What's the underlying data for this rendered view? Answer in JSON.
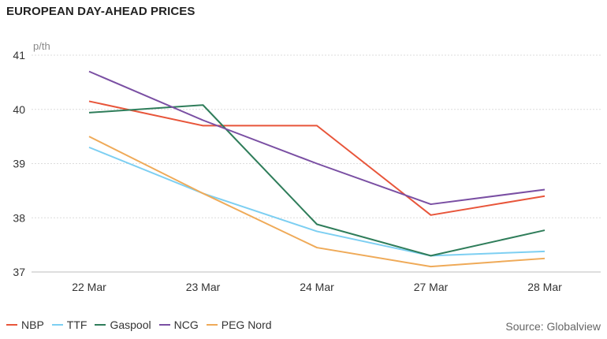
{
  "title": "EUROPEAN DAY-AHEAD PRICES",
  "source": "Source: Globalview",
  "chart_data": {
    "type": "line",
    "unit": "p/th",
    "categories": [
      "22 Mar",
      "23 Mar",
      "24 Mar",
      "27 Mar",
      "28 Mar"
    ],
    "yticks": [
      37,
      38,
      39,
      40,
      41
    ],
    "ylim": [
      37,
      41
    ],
    "grid": true,
    "legend_position": "bottom-left",
    "series": [
      {
        "name": "NBP",
        "color": "#e8553a",
        "values": [
          40.15,
          39.7,
          39.7,
          38.05,
          38.4
        ]
      },
      {
        "name": "TTF",
        "color": "#7dcff2",
        "values": [
          39.3,
          38.45,
          37.75,
          37.3,
          37.38
        ]
      },
      {
        "name": "Gaspool",
        "color": "#2f7d5a",
        "values": [
          39.94,
          40.08,
          37.88,
          37.3,
          37.77
        ]
      },
      {
        "name": "NCG",
        "color": "#7a4fa3",
        "values": [
          40.7,
          39.8,
          39.0,
          38.25,
          38.52
        ]
      },
      {
        "name": "PEG Nord",
        "color": "#efaa58",
        "values": [
          39.5,
          38.45,
          37.45,
          37.1,
          37.25
        ]
      }
    ]
  }
}
